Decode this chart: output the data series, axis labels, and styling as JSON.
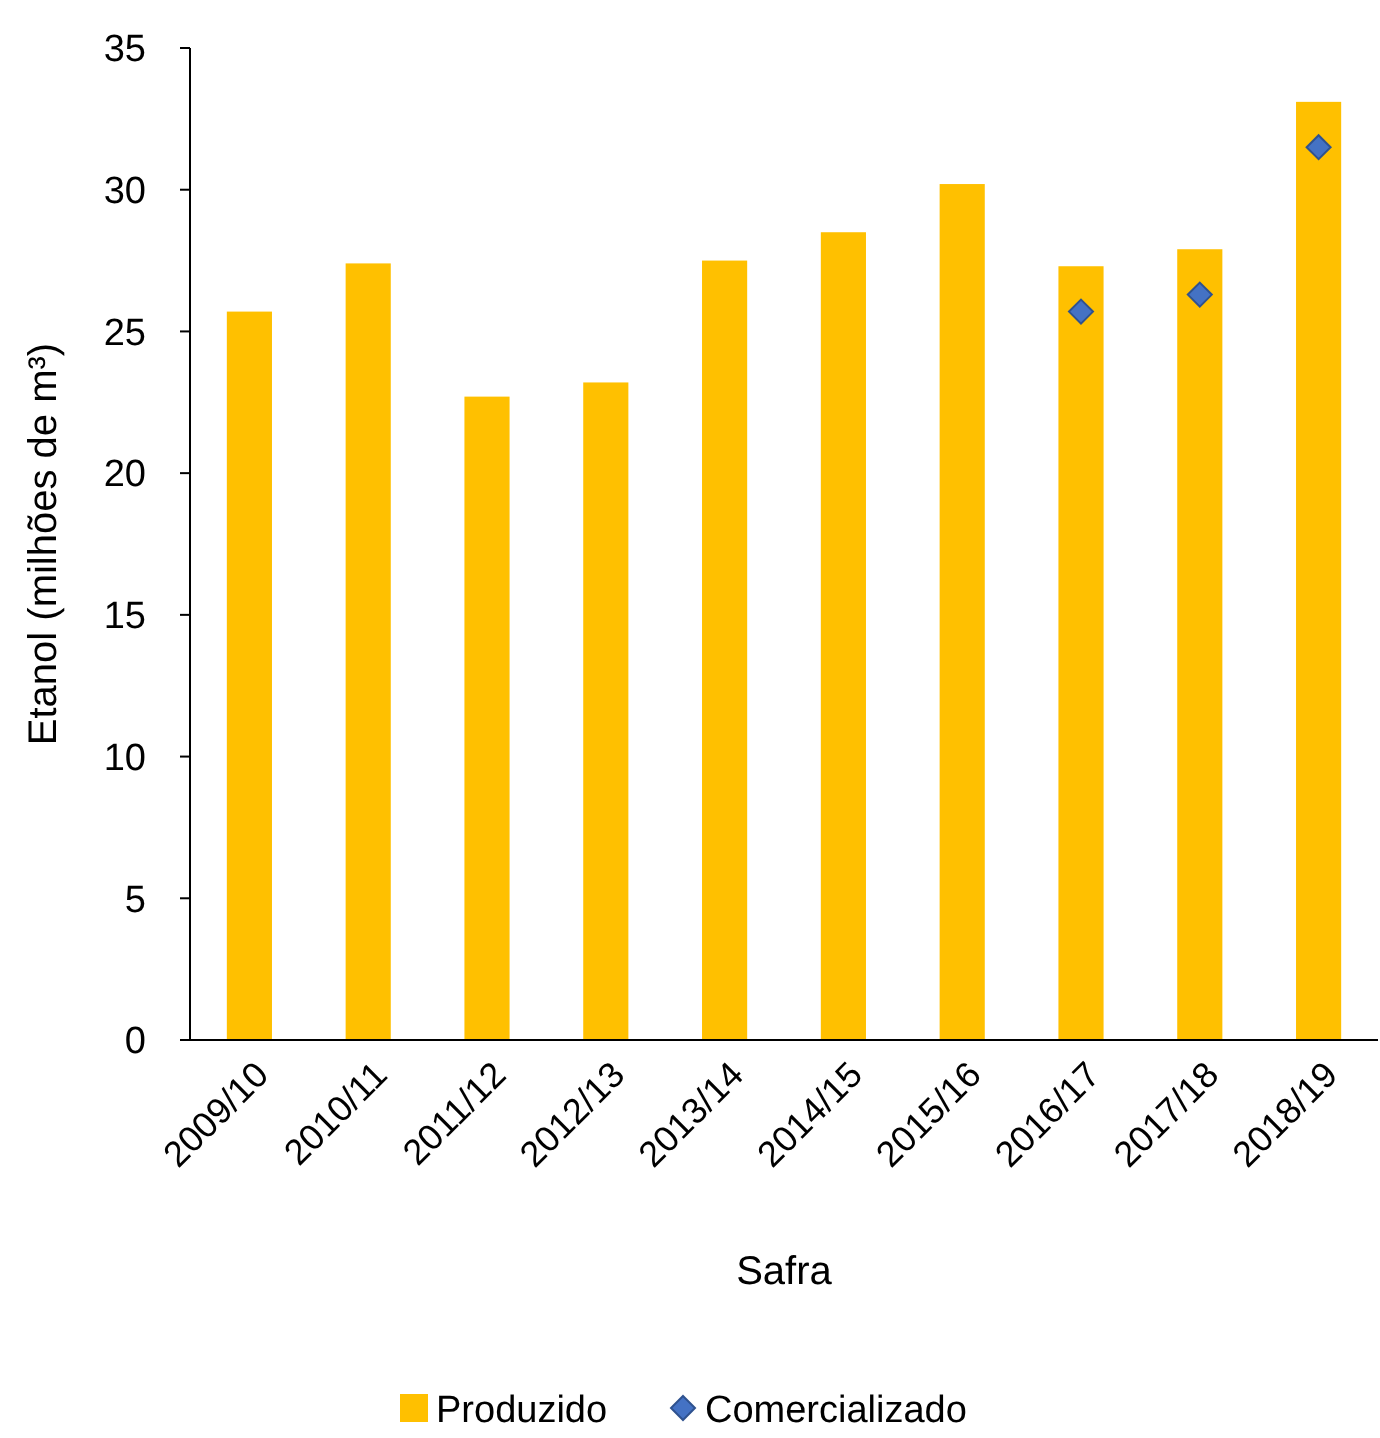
{
  "chart_data": {
    "type": "bar",
    "xlabel": "Safra",
    "ylabel": "Etanol (milhões de m³)",
    "categories": [
      "2009/10",
      "2010/11",
      "2011/12",
      "2012/13",
      "2013/14",
      "2014/15",
      "2015/16",
      "2016/17",
      "2017/18",
      "2018/19"
    ],
    "series": [
      {
        "name": "Produzido",
        "color": "#ffc000",
        "values": [
          25.7,
          27.4,
          22.7,
          23.2,
          27.5,
          28.5,
          30.2,
          27.3,
          27.9,
          33.1
        ]
      },
      {
        "name": "Comercializado",
        "type": "scatter",
        "color": "#4472c4",
        "marker": "diamond",
        "x": [
          "2016/17",
          "2017/18",
          "2018/19"
        ],
        "values": [
          25.7,
          26.3,
          31.5
        ]
      }
    ],
    "ylim": [
      0,
      35
    ],
    "yticks": [
      0,
      5,
      10,
      15,
      20,
      25,
      30,
      35
    ],
    "grid": false,
    "legend": "bottom"
  }
}
